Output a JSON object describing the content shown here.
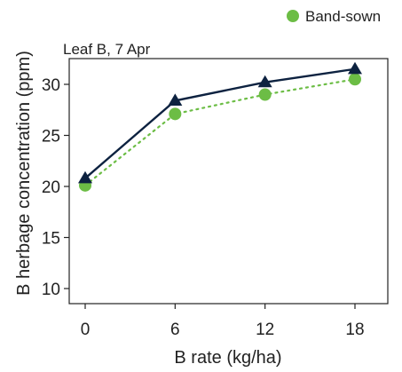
{
  "chart_data": {
    "type": "line",
    "title": "Leaf B, 7 Apr",
    "xlabel": "B rate (kg/ha)",
    "ylabel": "B herbage concentration (ppm)",
    "x": [
      0,
      6,
      12,
      18
    ],
    "xlim": [
      0,
      18
    ],
    "ylim": [
      8,
      32
    ],
    "xticks": [
      "0",
      "6",
      "12",
      "18"
    ],
    "yticks": [
      "10",
      "15",
      "20",
      "25",
      "30"
    ],
    "grid": false,
    "legend_position": "top-right",
    "series": [
      {
        "name": "",
        "marker": "triangle",
        "line_style": "solid",
        "color": "#0d2240",
        "values": [
          20.8,
          28.4,
          30.2,
          31.5
        ]
      },
      {
        "name": "Band-sown",
        "marker": "circle",
        "line_style": "dotted",
        "color": "#6cbd45",
        "values": [
          20.1,
          27.1,
          29.0,
          30.5
        ]
      }
    ]
  }
}
